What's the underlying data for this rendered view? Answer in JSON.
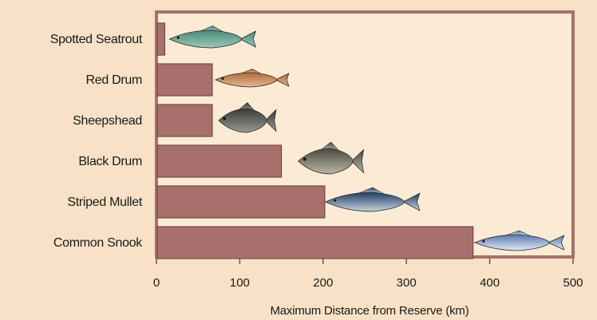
{
  "chart_data": {
    "type": "bar",
    "orientation": "horizontal",
    "categories": [
      "Spotted Seatrout",
      "Red Drum",
      "Sheepshead",
      "Black Drum",
      "Striped Mullet",
      "Common Snook"
    ],
    "values": [
      10,
      67,
      67,
      150,
      202,
      380
    ],
    "title": "",
    "xlabel": "Maximum Distance from Reserve (km)",
    "ylabel": "",
    "xlim": [
      0,
      500
    ],
    "xticks": [
      0,
      100,
      200,
      300,
      400,
      500
    ],
    "grid": false,
    "legend": "none",
    "bar_color": "#a8706c",
    "bar_edge_color": "#6f4a47",
    "plot_border_color": "#a8706c",
    "plot_background": "#fbebd5",
    "fish_icons": [
      "spotted-seatrout-icon",
      "red-drum-icon",
      "sheepshead-icon",
      "black-drum-icon",
      "striped-mullet-icon",
      "common-snook-icon"
    ]
  }
}
